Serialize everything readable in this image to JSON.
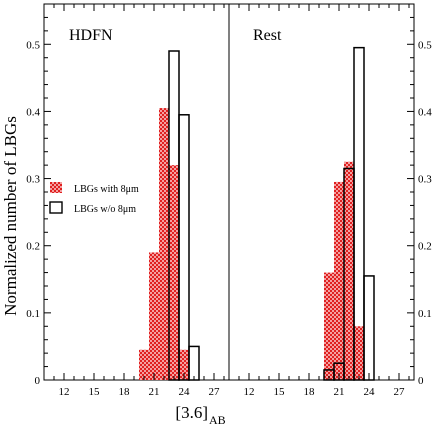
{
  "chart_data": {
    "type": "bar",
    "ylabel": "Normalized number of LBGs",
    "xlabel_main": "[3.6]",
    "xlabel_sub": "AB",
    "xlim": [
      10,
      28.5
    ],
    "ylim": [
      0,
      0.56
    ],
    "xticks": [
      12,
      15,
      18,
      21,
      24,
      27
    ],
    "yticks": [
      0,
      0.1,
      0.2,
      0.3,
      0.4,
      0.5
    ],
    "ytick_labels": [
      "0",
      "0.1",
      "0.2",
      "0.3",
      "0.4",
      "0.5"
    ],
    "bin_width": 1,
    "legend": {
      "position": "left",
      "with_label": "LBGs with 8μm",
      "without_label": "LBGs w/o 8μm"
    },
    "colors": {
      "with": "#e83030",
      "without_edge": "#000000"
    },
    "panels": [
      {
        "title": "HDFN",
        "with_8um": [
          {
            "bin_start": 19.5,
            "value": 0.045
          },
          {
            "bin_start": 20.5,
            "value": 0.19
          },
          {
            "bin_start": 21.5,
            "value": 0.405
          },
          {
            "bin_start": 22.5,
            "value": 0.32
          },
          {
            "bin_start": 23.5,
            "value": 0.045
          }
        ],
        "without_8um": [
          {
            "bin_start": 22.5,
            "value": 0.49
          },
          {
            "bin_start": 23.5,
            "value": 0.395
          },
          {
            "bin_start": 24.5,
            "value": 0.05
          }
        ]
      },
      {
        "title": "Rest",
        "with_8um": [
          {
            "bin_start": 19.5,
            "value": 0.16
          },
          {
            "bin_start": 20.5,
            "value": 0.295
          },
          {
            "bin_start": 21.5,
            "value": 0.325
          },
          {
            "bin_start": 22.5,
            "value": 0.08
          }
        ],
        "without_8um": [
          {
            "bin_start": 19.5,
            "value": 0.015
          },
          {
            "bin_start": 20.5,
            "value": 0.025
          },
          {
            "bin_start": 21.5,
            "value": 0.315
          },
          {
            "bin_start": 22.5,
            "value": 0.495
          },
          {
            "bin_start": 23.5,
            "value": 0.155
          }
        ]
      }
    ]
  }
}
